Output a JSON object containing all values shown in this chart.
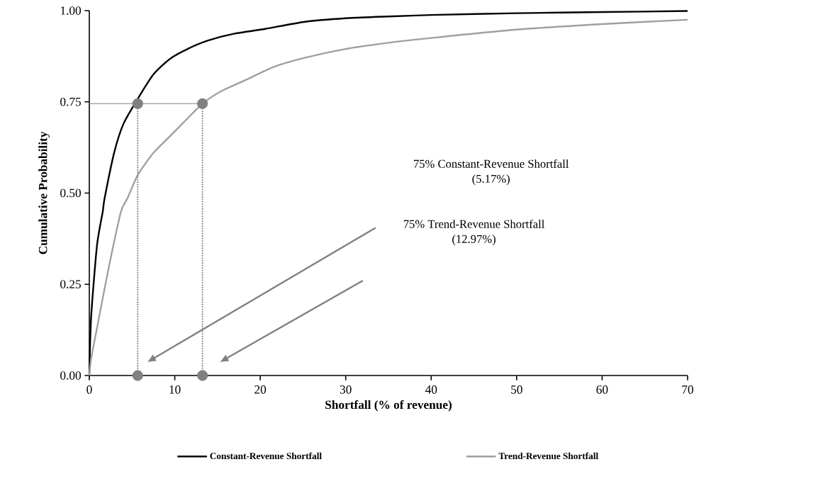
{
  "chart_data": {
    "type": "line",
    "xlabel": "Shortfall (% of revenue)",
    "ylabel": "Cumulative Probability",
    "xlim": [
      0,
      70
    ],
    "xticks": [
      0,
      10,
      20,
      30,
      40,
      50,
      60,
      70
    ],
    "ylim": [
      0,
      1
    ],
    "yticks": [
      {
        "value": 0,
        "label": "0.00"
      },
      {
        "value": 0.25,
        "label": "0.25"
      },
      {
        "value": 0.5,
        "label": "0.50"
      },
      {
        "value": 0.75,
        "label": "0.75"
      },
      {
        "value": 1,
        "label": "1.00"
      }
    ],
    "grid": false,
    "legend": "bottom",
    "series": [
      {
        "name": "Constant-Revenue Shortfall",
        "color": "#000000",
        "x": [
          0,
          0.22,
          0.9,
          1.57,
          1.79,
          2.9,
          4.0,
          5.66,
          7.5,
          9.4,
          11.5,
          13.9,
          17,
          20.6,
          25.1,
          30,
          35,
          40,
          50,
          60,
          70
        ],
        "values": [
          0,
          0.163,
          0.357,
          0.449,
          0.486,
          0.61,
          0.69,
          0.758,
          0.825,
          0.867,
          0.895,
          0.918,
          0.937,
          0.95,
          0.969,
          0.979,
          0.984,
          0.988,
          0.993,
          0.996,
          0.999
        ]
      },
      {
        "name": "Trend-Revenue Shortfall",
        "color": "#a0a0a0",
        "x": [
          0,
          0.22,
          0.9,
          2.24,
          3.7,
          4.47,
          5.66,
          7.5,
          9.4,
          11.3,
          13.24,
          15.5,
          18.3,
          21.5,
          25.1,
          30,
          35,
          40,
          50,
          60,
          70
        ],
        "values": [
          0,
          0.047,
          0.13,
          0.292,
          0.449,
          0.486,
          0.549,
          0.61,
          0.655,
          0.7,
          0.745,
          0.78,
          0.81,
          0.845,
          0.87,
          0.895,
          0.912,
          0.925,
          0.948,
          0.963,
          0.975
        ]
      },
      {
        "type": "line",
        "color": "#808080",
        "x": [
          0,
          13.24
        ],
        "values": [
          0.745,
          0.745
        ],
        "line_style": "solid"
      },
      {
        "type": "line",
        "color": "#808080",
        "x": [
          5.66,
          5.66
        ],
        "values": [
          0,
          0.745
        ],
        "line_style": "dotted"
      },
      {
        "type": "line",
        "color": "#808080",
        "x": [
          13.24,
          13.24
        ],
        "values": [
          0,
          0.745
        ],
        "line_style": "dotted"
      },
      {
        "type": "scatter",
        "color": "#808080",
        "marker": "circle",
        "x": [
          5.66,
          13.24,
          5.66,
          13.24
        ],
        "values": [
          0.745,
          0.745,
          0,
          0
        ]
      }
    ],
    "annotations": [
      "75% Constant-Revenue Shortfall",
      "(5.17%)",
      "75% Trend-Revenue Shortfall",
      "(12.97%)"
    ]
  }
}
